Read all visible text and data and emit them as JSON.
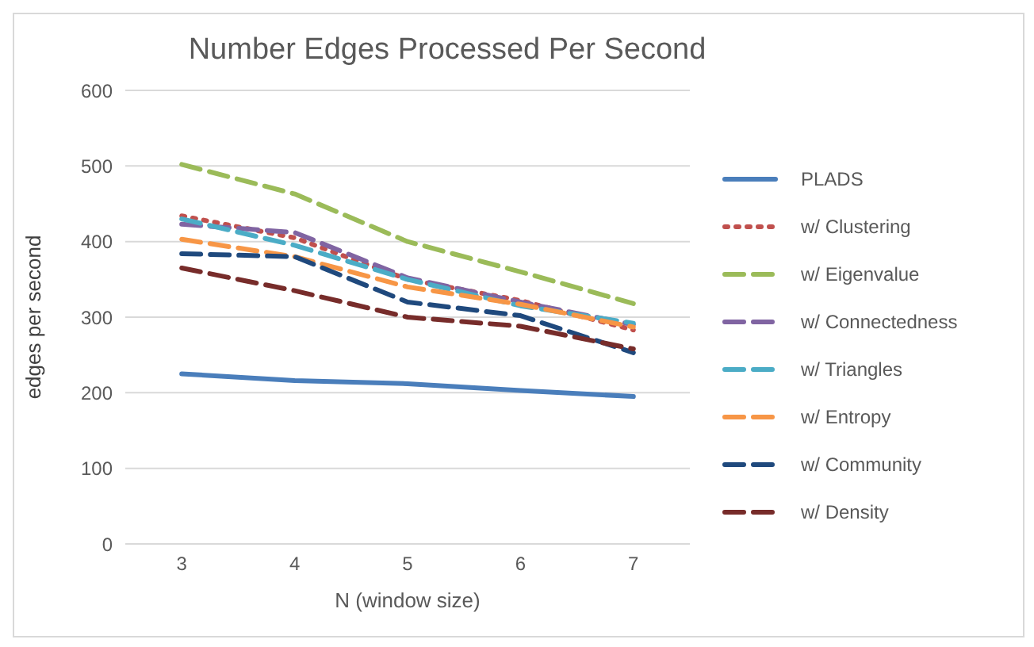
{
  "chart_data": {
    "type": "line",
    "title": "Number Edges Processed Per Second",
    "xlabel": "N (window size)",
    "ylabel": "edges per second",
    "x": [
      3,
      4,
      5,
      6,
      7
    ],
    "xlim": [
      2.5,
      7.5
    ],
    "xticks": [
      3,
      4,
      5,
      6,
      7
    ],
    "ylim": [
      0,
      600
    ],
    "yticks": [
      0,
      100,
      200,
      300,
      400,
      500,
      600
    ],
    "grid": "y",
    "legend": "right",
    "marker": "none",
    "series": [
      {
        "name": "PLADS",
        "color": "#4a7ebb",
        "line_style": "solid",
        "values": [
          225,
          216,
          212,
          203,
          195
        ]
      },
      {
        "name": "w/ Clustering",
        "color": "#c0504d",
        "line_style": "dotted",
        "values": [
          434,
          405,
          350,
          322,
          283
        ]
      },
      {
        "name": "w/ Eigenvalue",
        "color": "#9bbb59",
        "line_style": "dashed",
        "values": [
          502,
          463,
          400,
          360,
          318
        ]
      },
      {
        "name": "w/ Connectedness",
        "color": "#8064a2",
        "line_style": "dashed",
        "values": [
          423,
          412,
          352,
          320,
          290
        ]
      },
      {
        "name": "w/ Triangles",
        "color": "#4bacc6",
        "line_style": "dashed",
        "values": [
          430,
          395,
          350,
          315,
          292
        ]
      },
      {
        "name": "w/ Entropy",
        "color": "#f79646",
        "line_style": "dashed",
        "values": [
          403,
          380,
          340,
          317,
          287
        ]
      },
      {
        "name": "w/ Community",
        "color": "#1f497d",
        "line_style": "dashed",
        "values": [
          384,
          380,
          320,
          302,
          253
        ]
      },
      {
        "name": "w/ Density",
        "color": "#772c2a",
        "line_style": "dashed",
        "values": [
          365,
          335,
          300,
          288,
          258
        ]
      }
    ]
  }
}
